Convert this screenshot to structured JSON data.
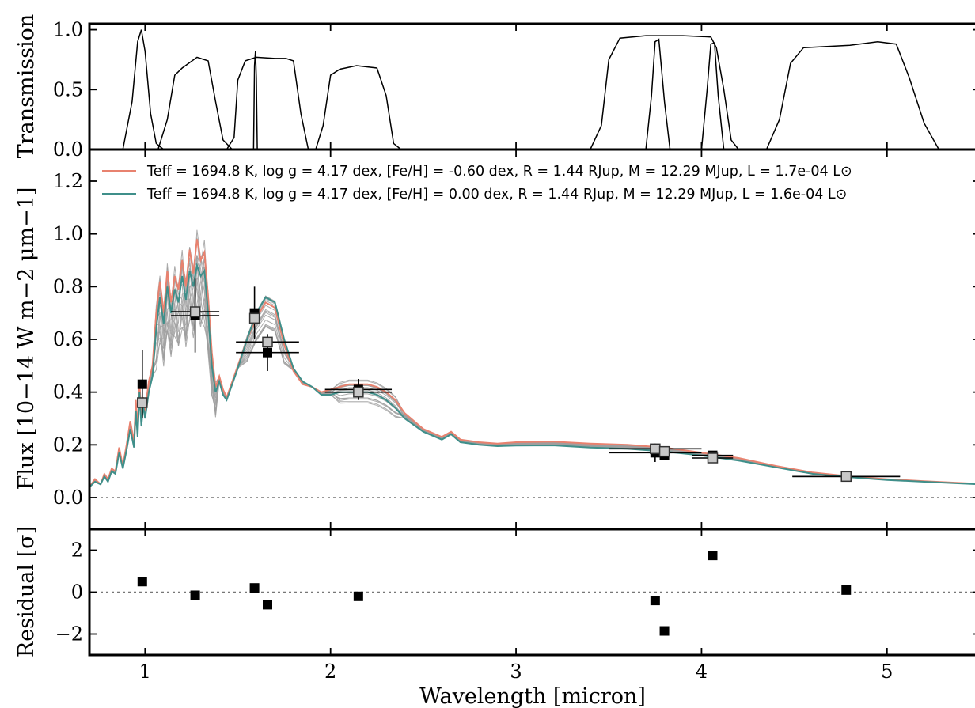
{
  "colors": {
    "model_low_feh": "#e8826f",
    "model_solar_feh": "#3f8f8a",
    "samples": "#9e9e9e",
    "observed_marker": "#000000",
    "synthetic_marker": "#c8c8c8"
  },
  "chart_data": [
    {
      "panel": "transmission",
      "type": "line",
      "ylabel": "Transmission",
      "xlim": [
        0.7,
        5.5
      ],
      "ylim": [
        0.0,
        1.05
      ],
      "yticks": [
        "0.0",
        "0.5",
        "1.0"
      ],
      "series": [
        {
          "x": [
            0.88,
            0.93,
            0.96,
            0.98,
            1.0,
            1.03,
            1.06,
            1.1
          ],
          "y": [
            0.0,
            0.4,
            0.9,
            1.0,
            0.82,
            0.3,
            0.05,
            0.0
          ]
        },
        {
          "x": [
            1.07,
            1.12,
            1.16,
            1.2,
            1.28,
            1.34,
            1.38,
            1.42,
            1.47
          ],
          "y": [
            0.0,
            0.25,
            0.62,
            0.68,
            0.77,
            0.74,
            0.4,
            0.08,
            0.0
          ]
        },
        {
          "x": [
            1.44,
            1.48,
            1.5,
            1.54,
            1.6,
            1.7,
            1.76,
            1.8,
            1.84,
            1.88
          ],
          "y": [
            0.0,
            0.1,
            0.58,
            0.74,
            0.77,
            0.76,
            0.76,
            0.74,
            0.3,
            0.0
          ]
        },
        {
          "x": [
            1.585,
            1.59,
            1.595,
            1.6,
            1.605
          ],
          "y": [
            0.0,
            0.7,
            0.82,
            0.6,
            0.0
          ]
        },
        {
          "x": [
            1.92,
            1.96,
            2.0,
            2.05,
            2.14,
            2.25,
            2.3,
            2.34,
            2.38
          ],
          "y": [
            0.0,
            0.2,
            0.62,
            0.67,
            0.7,
            0.68,
            0.45,
            0.05,
            0.0
          ]
        },
        {
          "x": [
            3.4,
            3.46,
            3.5,
            3.56,
            3.7,
            3.9,
            4.05,
            4.08,
            4.12,
            4.16,
            4.2
          ],
          "y": [
            0.0,
            0.2,
            0.75,
            0.93,
            0.95,
            0.95,
            0.94,
            0.85,
            0.5,
            0.08,
            0.0
          ]
        },
        {
          "x": [
            3.7,
            3.73,
            3.75,
            3.77,
            3.8,
            3.83
          ],
          "y": [
            0.0,
            0.45,
            0.9,
            0.92,
            0.4,
            0.0
          ]
        },
        {
          "x": [
            4.0,
            4.03,
            4.05,
            4.07,
            4.09,
            4.12
          ],
          "y": [
            0.0,
            0.5,
            0.88,
            0.89,
            0.45,
            0.0
          ]
        },
        {
          "x": [
            4.35,
            4.42,
            4.48,
            4.55,
            4.8,
            4.95,
            5.05,
            5.12,
            5.2,
            5.28
          ],
          "y": [
            0.0,
            0.25,
            0.72,
            0.85,
            0.87,
            0.9,
            0.88,
            0.6,
            0.22,
            0.0
          ]
        }
      ]
    },
    {
      "panel": "spectrum",
      "type": "line",
      "ylabel": "Flux [10−14 W m−2 μm−1]",
      "xlim": [
        0.7,
        5.5
      ],
      "ylim": [
        -0.12,
        1.32
      ],
      "yticks": [
        "0.0",
        "0.2",
        "0.4",
        "0.6",
        "0.8",
        "1.0",
        "1.2"
      ],
      "legend_placement": "top-left",
      "legend": [
        "Teff = 1694.8 K, log g = 4.17 dex, [Fe/H] = -0.60 dex, R = 1.44 RJup, M = 12.29 MJup, L = 1.7e-04 L⊙",
        "Teff = 1694.8 K, log g = 4.17 dex, [Fe/H] = 0.00 dex, R = 1.44 RJup, M = 12.29 MJup, L = 1.6e-04 L⊙"
      ],
      "model_x": [
        0.7,
        0.73,
        0.76,
        0.78,
        0.8,
        0.82,
        0.84,
        0.86,
        0.88,
        0.9,
        0.92,
        0.94,
        0.95,
        0.96,
        0.97,
        0.98,
        0.99,
        1.0,
        1.02,
        1.04,
        1.06,
        1.08,
        1.1,
        1.12,
        1.14,
        1.16,
        1.18,
        1.2,
        1.22,
        1.24,
        1.26,
        1.28,
        1.3,
        1.32,
        1.34,
        1.36,
        1.38,
        1.4,
        1.42,
        1.44,
        1.46,
        1.5,
        1.55,
        1.6,
        1.65,
        1.7,
        1.75,
        1.8,
        1.85,
        1.9,
        1.95,
        2.0,
        2.05,
        2.1,
        2.15,
        2.2,
        2.25,
        2.3,
        2.35,
        2.4,
        2.5,
        2.6,
        2.65,
        2.7,
        2.8,
        2.9,
        3.0,
        3.2,
        3.4,
        3.6,
        3.8,
        4.0,
        4.2,
        4.4,
        4.6,
        4.8,
        5.0,
        5.2,
        5.5
      ],
      "series": [
        {
          "name": "[Fe/H] = -0.60 dex",
          "y": [
            0.04,
            0.07,
            0.05,
            0.09,
            0.07,
            0.11,
            0.1,
            0.19,
            0.12,
            0.2,
            0.29,
            0.21,
            0.37,
            0.26,
            0.44,
            0.3,
            0.38,
            0.33,
            0.44,
            0.5,
            0.7,
            0.82,
            0.7,
            0.86,
            0.74,
            0.84,
            0.79,
            0.9,
            0.8,
            0.94,
            0.85,
            0.98,
            0.9,
            0.93,
            0.76,
            0.55,
            0.42,
            0.46,
            0.41,
            0.38,
            0.42,
            0.5,
            0.6,
            0.68,
            0.74,
            0.72,
            0.58,
            0.48,
            0.43,
            0.42,
            0.4,
            0.41,
            0.42,
            0.43,
            0.43,
            0.43,
            0.42,
            0.4,
            0.37,
            0.32,
            0.26,
            0.23,
            0.25,
            0.22,
            0.21,
            0.205,
            0.21,
            0.212,
            0.205,
            0.2,
            0.19,
            0.17,
            0.15,
            0.12,
            0.095,
            0.08,
            0.07,
            0.062,
            0.052
          ]
        },
        {
          "name": "[Fe/H] = 0.00 dex",
          "y": [
            0.04,
            0.06,
            0.05,
            0.08,
            0.06,
            0.1,
            0.09,
            0.17,
            0.11,
            0.18,
            0.26,
            0.19,
            0.33,
            0.23,
            0.4,
            0.27,
            0.35,
            0.3,
            0.4,
            0.46,
            0.64,
            0.76,
            0.66,
            0.8,
            0.7,
            0.79,
            0.74,
            0.84,
            0.75,
            0.86,
            0.8,
            0.88,
            0.84,
            0.86,
            0.7,
            0.5,
            0.4,
            0.44,
            0.39,
            0.37,
            0.41,
            0.49,
            0.6,
            0.7,
            0.76,
            0.74,
            0.6,
            0.49,
            0.44,
            0.42,
            0.39,
            0.39,
            0.4,
            0.4,
            0.4,
            0.4,
            0.39,
            0.37,
            0.34,
            0.3,
            0.25,
            0.22,
            0.24,
            0.21,
            0.2,
            0.195,
            0.197,
            0.198,
            0.19,
            0.185,
            0.175,
            0.16,
            0.14,
            0.115,
            0.09,
            0.077,
            0.067,
            0.06,
            0.05
          ]
        }
      ],
      "points": [
        {
          "x": 0.985,
          "observed": 0.43,
          "yerr": 0.13,
          "xerr": 0.0,
          "synthetic": 0.36
        },
        {
          "x": 1.27,
          "observed": 0.69,
          "yerr": 0.14,
          "xerr": 0.13,
          "synthetic": 0.705
        },
        {
          "x": 1.59,
          "observed": 0.7,
          "yerr": 0.1,
          "xerr": 0.0,
          "synthetic": 0.68
        },
        {
          "x": 1.66,
          "observed": 0.55,
          "yerr": 0.07,
          "xerr": 0.17,
          "synthetic": 0.59
        },
        {
          "x": 2.15,
          "observed": 0.41,
          "yerr": 0.04,
          "xerr": 0.18,
          "synthetic": 0.4
        },
        {
          "x": 3.75,
          "observed": 0.17,
          "yerr": 0.035,
          "xerr": 0.25,
          "synthetic": 0.185
        },
        {
          "x": 3.8,
          "observed": 0.16,
          "yerr": 0.015,
          "xerr": 0.0,
          "synthetic": 0.175
        },
        {
          "x": 4.06,
          "observed": 0.16,
          "yerr": 0.01,
          "xerr": 0.11,
          "synthetic": 0.15
        },
        {
          "x": 4.78,
          "observed": 0.08,
          "yerr": 0.005,
          "xerr": 0.29,
          "synthetic": 0.08
        }
      ]
    },
    {
      "panel": "residuals",
      "type": "scatter",
      "ylabel": "Residual [σ]",
      "xlabel": "Wavelength [micron]",
      "xlim": [
        0.7,
        5.5
      ],
      "ylim": [
        -3.0,
        3.0
      ],
      "yticks": [
        "−2",
        "0",
        "2"
      ],
      "xticks": [
        "1",
        "2",
        "3",
        "4",
        "5"
      ],
      "x": [
        0.985,
        1.27,
        1.59,
        1.66,
        2.15,
        3.75,
        3.8,
        4.06,
        4.78
      ],
      "y": [
        0.5,
        -0.15,
        0.2,
        -0.6,
        -0.2,
        -0.4,
        -1.85,
        1.75,
        0.1
      ]
    }
  ]
}
